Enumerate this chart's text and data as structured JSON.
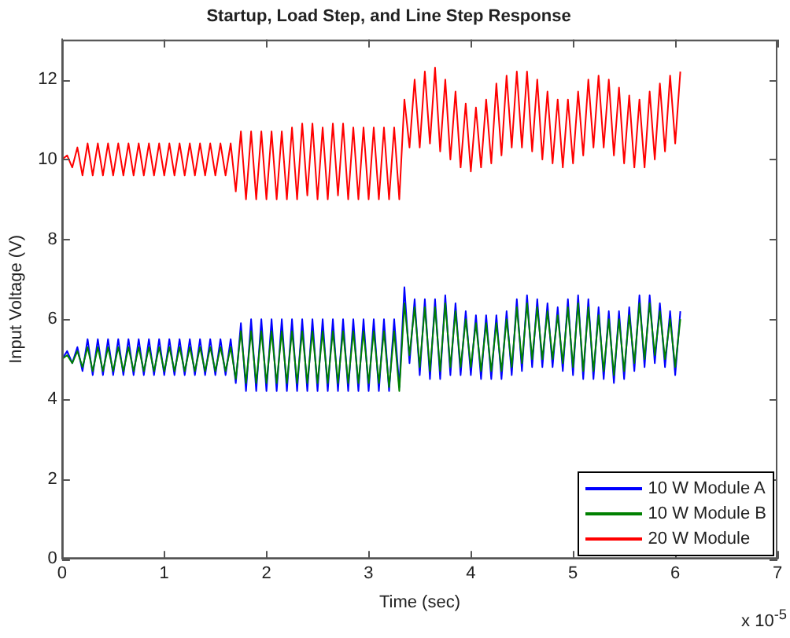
{
  "chart_data": {
    "type": "line",
    "title": "Startup, Load Step, and Line Step Response",
    "xlabel": "Time (sec)",
    "ylabel": "Input Voltage (V)",
    "xlim": [
      0,
      7
    ],
    "xticks": [
      0,
      1,
      2,
      3,
      4,
      5,
      6,
      7
    ],
    "ylim": [
      0,
      13
    ],
    "yticks": [
      0,
      2,
      4,
      6,
      8,
      10,
      12
    ],
    "marker": "none",
    "legend": "bottom right",
    "annotations": [
      "x 10$^{-5}$"
    ],
    "x": [
      0,
      0.05,
      0.1,
      0.15,
      0.2,
      0.25,
      0.3,
      0.35,
      0.4,
      0.45,
      0.5,
      0.55,
      0.6,
      0.65,
      0.7,
      0.75,
      0.8,
      0.85,
      0.9,
      0.95,
      1,
      1.05,
      1.1,
      1.15,
      1.2,
      1.25,
      1.3,
      1.35,
      1.4,
      1.45,
      1.5,
      1.55,
      1.6,
      1.65,
      1.7,
      1.75,
      1.8,
      1.85,
      1.9,
      1.95,
      2,
      2.05,
      2.1,
      2.15,
      2.2,
      2.25,
      2.3,
      2.35,
      2.4,
      2.45,
      2.5,
      2.55,
      2.6,
      2.65,
      2.7,
      2.75,
      2.8,
      2.85,
      2.9,
      2.95,
      3,
      3.05,
      3.1,
      3.15,
      3.2,
      3.25,
      3.3,
      3.35,
      3.4,
      3.45,
      3.5,
      3.55,
      3.6,
      3.65,
      3.7,
      3.75,
      3.8,
      3.85,
      3.9,
      3.95,
      4,
      4.05,
      4.1,
      4.15,
      4.2,
      4.25,
      4.3,
      4.35,
      4.4,
      4.45,
      4.5,
      4.55,
      4.6,
      4.65,
      4.7,
      4.75,
      4.8,
      4.85,
      4.9,
      4.95,
      5,
      5.05,
      5.1,
      5.15,
      5.2,
      5.25,
      5.3,
      5.35,
      5.4,
      5.45,
      5.5,
      5.55,
      5.6,
      5.65,
      5.7,
      5.75,
      5.8,
      5.85,
      5.9,
      5.95,
      6,
      6.05
    ],
    "series": [
      {
        "name": "10 W Module A",
        "color": "#0000ff",
        "values": [
          5,
          5.2,
          4.9,
          5.3,
          4.7,
          5.5,
          4.6,
          5.5,
          4.6,
          5.5,
          4.6,
          5.5,
          4.6,
          5.5,
          4.6,
          5.5,
          4.6,
          5.5,
          4.6,
          5.5,
          4.6,
          5.5,
          4.6,
          5.5,
          4.6,
          5.5,
          4.6,
          5.5,
          4.6,
          5.5,
          4.6,
          5.5,
          4.6,
          5.5,
          4.4,
          5.9,
          4.2,
          6,
          4.2,
          6,
          4.2,
          6,
          4.2,
          6,
          4.2,
          6,
          4.2,
          6,
          4.2,
          6,
          4.2,
          6,
          4.2,
          6,
          4.2,
          6,
          4.2,
          6,
          4.2,
          6,
          4.2,
          6,
          4.2,
          6,
          4.2,
          6,
          4.3,
          6.8,
          4.9,
          6.5,
          4.6,
          6.5,
          4.5,
          6.5,
          4.5,
          6.6,
          4.6,
          6.4,
          4.6,
          6.2,
          4.6,
          6.1,
          4.5,
          6.1,
          4.5,
          6.1,
          4.5,
          6.2,
          4.6,
          6.5,
          4.7,
          6.6,
          4.8,
          6.5,
          4.8,
          6.4,
          4.8,
          6.3,
          4.7,
          6.5,
          4.6,
          6.6,
          4.5,
          6.5,
          4.5,
          6.3,
          4.5,
          6.2,
          4.4,
          6.2,
          4.5,
          6.3,
          4.7,
          6.6,
          4.8,
          6.6,
          4.9,
          6.4,
          4.8,
          6.2,
          4.6,
          6.2
        ]
      },
      {
        "name": "10 W Module B",
        "color": "#008000",
        "values": [
          5,
          5.1,
          4.9,
          5.2,
          4.8,
          5.3,
          4.7,
          5.3,
          4.7,
          5.3,
          4.7,
          5.3,
          4.7,
          5.3,
          4.7,
          5.3,
          4.7,
          5.3,
          4.7,
          5.3,
          4.7,
          5.3,
          4.7,
          5.3,
          4.7,
          5.3,
          4.7,
          5.3,
          4.7,
          5.3,
          4.7,
          5.3,
          4.7,
          5.3,
          4.5,
          5.7,
          4.4,
          5.7,
          4.4,
          5.7,
          4.4,
          5.7,
          4.4,
          5.7,
          4.4,
          5.7,
          4.4,
          5.7,
          4.4,
          5.7,
          4.4,
          5.7,
          4.4,
          5.7,
          4.4,
          5.7,
          4.4,
          5.7,
          4.4,
          5.7,
          4.4,
          5.7,
          4.4,
          5.7,
          4.3,
          5.7,
          4.2,
          6.4,
          5.1,
          6.3,
          4.8,
          6.3,
          4.7,
          6.3,
          4.7,
          6.4,
          4.8,
          6.2,
          4.8,
          6,
          4.8,
          5.9,
          4.7,
          5.9,
          4.7,
          5.9,
          4.7,
          6,
          4.8,
          6.3,
          4.9,
          6.4,
          5,
          6.3,
          5,
          6.2,
          5,
          6.1,
          4.9,
          6.3,
          4.8,
          6.4,
          4.7,
          6.3,
          4.7,
          6.1,
          4.7,
          6,
          4.6,
          6,
          4.7,
          6.1,
          4.9,
          6.4,
          5,
          6.4,
          5.1,
          6.2,
          5,
          6,
          4.8,
          6
        ]
      },
      {
        "name": "20 W Module",
        "color": "#ff0000",
        "values": [
          10,
          10.1,
          9.8,
          10.3,
          9.6,
          10.4,
          9.6,
          10.4,
          9.6,
          10.4,
          9.6,
          10.4,
          9.6,
          10.4,
          9.6,
          10.4,
          9.6,
          10.4,
          9.6,
          10.4,
          9.6,
          10.4,
          9.6,
          10.4,
          9.6,
          10.4,
          9.6,
          10.4,
          9.6,
          10.4,
          9.6,
          10.4,
          9.6,
          10.4,
          9.2,
          10.7,
          9,
          10.7,
          9,
          10.7,
          9,
          10.7,
          9,
          10.7,
          9,
          10.8,
          9,
          10.9,
          9.1,
          10.9,
          9,
          10.8,
          9,
          10.9,
          9.1,
          10.9,
          9,
          10.8,
          9,
          10.8,
          9,
          10.8,
          9,
          10.8,
          9,
          10.8,
          9,
          11.5,
          10.3,
          12,
          10.3,
          12.2,
          10.4,
          12.3,
          10.2,
          12,
          10,
          11.7,
          9.8,
          11.4,
          9.7,
          11.3,
          9.8,
          11.5,
          9.9,
          11.9,
          10.1,
          12.1,
          10.3,
          12.2,
          10.3,
          12.2,
          10.2,
          12,
          10,
          11.7,
          9.9,
          11.5,
          9.8,
          11.5,
          9.9,
          11.7,
          10.1,
          12,
          10.3,
          12.1,
          10.3,
          12,
          10.1,
          11.8,
          9.9,
          11.6,
          9.8,
          11.5,
          9.8,
          11.7,
          10,
          11.9,
          10.2,
          12.1,
          10.4,
          12.2
        ]
      }
    ]
  }
}
